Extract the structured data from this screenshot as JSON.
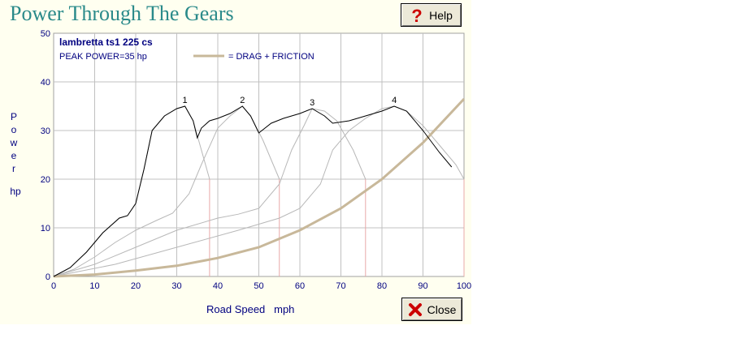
{
  "window": {
    "title": "Power Through The Gears"
  },
  "toolbar": {
    "help_label": "Help",
    "close_label": "Close"
  },
  "chart_data": {
    "type": "line",
    "heading": "lambretta ts1 225 cs",
    "subheading": "PEAK POWER=35 hp",
    "legend": {
      "label": "= DRAG + FRICTION",
      "color": "#c8b89a"
    },
    "ylabel_letters": [
      "P",
      "o",
      "w",
      "e",
      "r"
    ],
    "yunit": "hp",
    "xlabel": "Road Speed   mph",
    "xlim": [
      0,
      100
    ],
    "ylim": [
      0,
      50
    ],
    "xticks": [
      0,
      10,
      20,
      30,
      40,
      50,
      60,
      70,
      80,
      90,
      100
    ],
    "yticks": [
      0,
      10,
      20,
      30,
      40,
      50
    ],
    "grid": true,
    "gear_labels": [
      "1",
      "2",
      "3",
      "4"
    ],
    "gears": [
      {
        "name": "1",
        "x": [
          0,
          4,
          8,
          12,
          16,
          18,
          20,
          22,
          24,
          27,
          30,
          32,
          34,
          36,
          38
        ],
        "y": [
          0,
          1.8,
          5,
          9,
          12,
          12.5,
          15,
          22,
          30,
          33,
          34.5,
          35,
          32,
          26,
          20
        ],
        "cutoff": 38
      },
      {
        "name": "2",
        "x": [
          0,
          5,
          10,
          15,
          20,
          25,
          29,
          33,
          36,
          40,
          43,
          46,
          48,
          51,
          55
        ],
        "y": [
          0,
          1.5,
          4,
          7,
          9.5,
          11.5,
          13,
          17,
          23,
          30.5,
          33,
          35,
          33,
          28,
          20
        ],
        "cutoff": 55
      },
      {
        "name": "3",
        "x": [
          0,
          10,
          20,
          30,
          40,
          45,
          50,
          55,
          58,
          61,
          63,
          66,
          69,
          73,
          76
        ],
        "y": [
          0,
          2.5,
          6,
          9.5,
          12,
          12.8,
          14,
          19,
          26,
          31,
          34.5,
          34,
          32,
          26,
          20
        ],
        "cutoff": 76
      },
      {
        "name": "4",
        "x": [
          0,
          15,
          30,
          45,
          55,
          60,
          65,
          68,
          72,
          76,
          80,
          83,
          86,
          90,
          94,
          98,
          100
        ],
        "y": [
          0,
          2.5,
          6,
          9.5,
          12,
          14,
          19,
          26,
          30,
          32.5,
          34.5,
          35,
          34,
          31,
          27,
          23,
          20
        ],
        "cutoff": 100
      }
    ],
    "envelope": {
      "x": [
        0,
        4,
        8,
        12,
        16,
        18,
        20,
        22,
        24,
        27,
        30,
        32,
        34,
        35,
        36,
        38,
        40,
        43,
        46,
        48,
        50,
        53,
        56,
        60,
        63,
        66,
        68,
        72,
        76,
        80,
        83,
        86,
        90,
        94,
        97
      ],
      "y": [
        0,
        1.8,
        5,
        9,
        12,
        12.5,
        15,
        22,
        30,
        33,
        34.5,
        35,
        32,
        28.5,
        30.5,
        32,
        32.5,
        33.5,
        35,
        33,
        29.5,
        31.5,
        32.5,
        33.5,
        34.5,
        33,
        31.5,
        32,
        33,
        34,
        35,
        34,
        30,
        25.5,
        22.5
      ]
    },
    "drag": {
      "x": [
        0,
        10,
        20,
        30,
        40,
        50,
        60,
        70,
        80,
        90,
        100
      ],
      "y": [
        0,
        0.4,
        1.2,
        2.2,
        3.8,
        6,
        9.5,
        14,
        20,
        27.5,
        36.5
      ]
    }
  }
}
